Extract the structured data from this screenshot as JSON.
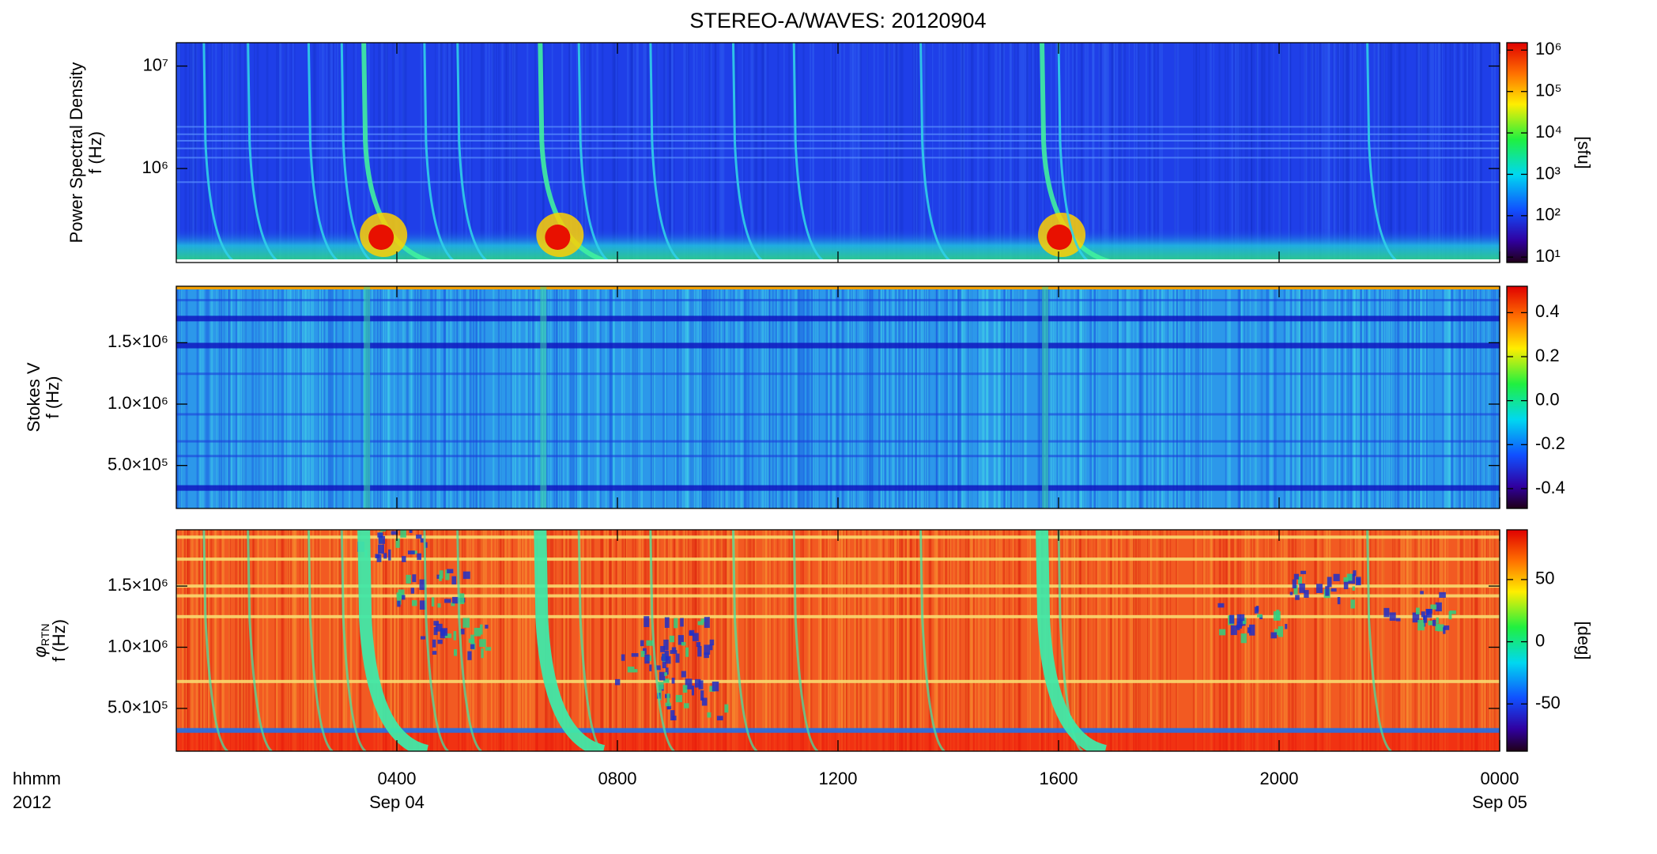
{
  "title": "STEREO-A/WAVES: 20120904",
  "chart_data": [
    {
      "type": "heatmap",
      "ylabel": "Power Spectral Density",
      "ylabel2": "f (Hz)",
      "ylog": true,
      "ylim": [
        121000,
        16900000
      ],
      "yticks": [
        {
          "value": 1000000,
          "label": "10⁶"
        },
        {
          "value": 10000000,
          "label": "10⁷"
        }
      ],
      "clog": true,
      "clim": [
        7.4,
        1510000
      ],
      "cticks": [
        {
          "value": 10,
          "label": "10¹"
        },
        {
          "value": 100,
          "label": "10²"
        },
        {
          "value": 1000,
          "label": "10³"
        },
        {
          "value": 10000,
          "label": "10⁴"
        },
        {
          "value": 100000,
          "label": "10⁵"
        },
        {
          "value": 1000000,
          "label": "10⁶"
        }
      ],
      "colorbar_label": "[sfu]"
    },
    {
      "type": "heatmap",
      "ylabel": "Stokes V",
      "ylabel2": "f (Hz)",
      "ylog": false,
      "ylim": [
        150000,
        1960000
      ],
      "yticks": [
        {
          "value": 500000,
          "label": "5.0×10⁵"
        },
        {
          "value": 1000000,
          "label": "1.0×10⁶"
        },
        {
          "value": 1500000,
          "label": "1.5×10⁶"
        }
      ],
      "clog": false,
      "clim": [
        -0.49,
        0.52
      ],
      "cticks": [
        -0.4,
        -0.2,
        {
          "value": 0,
          "label": "0.0"
        },
        0.2,
        0.4
      ]
    },
    {
      "type": "heatmap",
      "ylabel": "φ",
      "ylabel_sub": "RTN",
      "ylabel2": "f (Hz)",
      "ylog": false,
      "ylim": [
        150000,
        1960000
      ],
      "yticks": [
        {
          "value": 500000,
          "label": "5.0×10⁵"
        },
        {
          "value": 1000000,
          "label": "1.0×10⁶"
        },
        {
          "value": 1500000,
          "label": "1.5×10⁶"
        }
      ],
      "clog": false,
      "clim": [
        -88,
        90
      ],
      "cticks": [
        -50,
        0,
        50
      ],
      "colorbar_label": "[deg]",
      "xlim": [
        0,
        24
      ],
      "xticks": [
        {
          "value": 4,
          "label": "0400"
        },
        {
          "value": 8,
          "label": "0800"
        },
        {
          "value": 12,
          "label": "1200"
        },
        {
          "value": 16,
          "label": "1600"
        },
        {
          "value": 20,
          "label": "2000"
        },
        {
          "value": 24,
          "label": "0000"
        }
      ],
      "x_date_labels": [
        {
          "value": 4,
          "label": "Sep 04"
        },
        {
          "value": 24,
          "label": "Sep 05"
        }
      ],
      "x_unit_labels": [
        "hhmm",
        "2012"
      ]
    }
  ]
}
